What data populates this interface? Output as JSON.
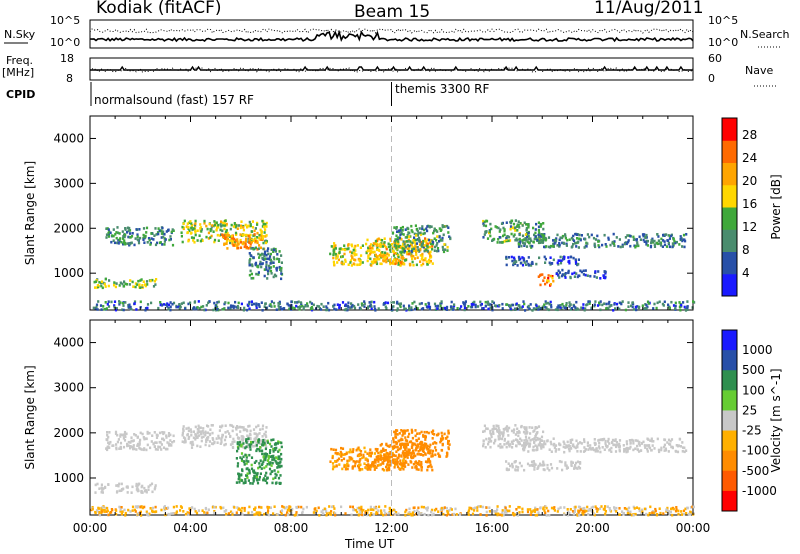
{
  "header": {
    "station": "Kodiak (fitACF)",
    "beam": "Beam 15",
    "date": "11/Aug/2011"
  },
  "side_labels": {
    "nsky": "N.Sky",
    "nsearch": "N.Search",
    "freq": "Freq.",
    "freq_unit": "[MHz]",
    "nave": "Nave",
    "cpid": "CPID"
  },
  "noise_axis": {
    "top": "10^5",
    "bottom": "10^0",
    "right_top": "10^5",
    "right_bottom": "10^0"
  },
  "freq_axis": {
    "top": "18",
    "bottom": "8",
    "right_top": "60",
    "right_bottom": "0"
  },
  "cpid_segments": [
    {
      "label": "normalsound (fast) 157 RF",
      "start_hour": 0
    },
    {
      "label": "themis 3300 RF",
      "start_hour": 12
    }
  ],
  "colors": {
    "power": [
      "#1a1aff",
      "#2850a8",
      "#4a8c6e",
      "#3fa83a",
      "#ffd700",
      "#ffa500",
      "#ff6a00",
      "#ff0000"
    ],
    "velocity": [
      "#ff0000",
      "#ff5a00",
      "#ff8c00",
      "#ffb000",
      "#c8c8c8",
      "#66cc33",
      "#2f8f4f",
      "#2850a8",
      "#1a1aff"
    ],
    "ground_scatter": "#c8c8c8"
  },
  "chart_data": [
    {
      "type": "heatmap",
      "title": "",
      "parameter": "Power",
      "xlabel": "",
      "ylabel": "Slant Range [km]",
      "xlim": [
        0,
        24
      ],
      "ylim": [
        180,
        4500
      ],
      "x_ticks": [
        "00:00",
        "04:00",
        "08:00",
        "12:00",
        "16:00",
        "20:00",
        "00:00"
      ],
      "y_ticks": [
        1000,
        2000,
        3000,
        4000
      ],
      "colorbar": {
        "label": "Power [dB]",
        "ticks": [
          4,
          8,
          12,
          16,
          20,
          24,
          28
        ],
        "range": [
          0,
          31
        ]
      },
      "scatter_regions": [
        {
          "t": [
            0.1,
            2.6
          ],
          "r": [
            700,
            900
          ],
          "level": 14
        },
        {
          "t": [
            0.6,
            3.3
          ],
          "r": [
            1650,
            2050
          ],
          "level": 10
        },
        {
          "t": [
            3.6,
            7.0
          ],
          "r": [
            1700,
            2200
          ],
          "level": 16
        },
        {
          "t": [
            5.2,
            6.9
          ],
          "r": [
            1550,
            1900
          ],
          "level": 22
        },
        {
          "t": [
            6.3,
            7.6
          ],
          "r": [
            900,
            1600
          ],
          "level": 9
        },
        {
          "t": [
            9.5,
            12.5
          ],
          "r": [
            1200,
            1700
          ],
          "level": 18
        },
        {
          "t": [
            11.0,
            13.6
          ],
          "r": [
            1200,
            1800
          ],
          "level": 20
        },
        {
          "t": [
            12.0,
            14.3
          ],
          "r": [
            1500,
            2100
          ],
          "level": 12
        },
        {
          "t": [
            15.6,
            18.0
          ],
          "r": [
            1700,
            2200
          ],
          "level": 12
        },
        {
          "t": [
            17.0,
            23.7
          ],
          "r": [
            1600,
            1900
          ],
          "level": 9
        },
        {
          "t": [
            16.5,
            19.5
          ],
          "r": [
            1200,
            1400
          ],
          "level": 7
        },
        {
          "t": [
            17.8,
            18.4
          ],
          "r": [
            750,
            1000
          ],
          "level": 24
        },
        {
          "t": [
            18.5,
            20.5
          ],
          "r": [
            900,
            1100
          ],
          "level": 6
        },
        {
          "t": [
            0.0,
            24.0
          ],
          "r": [
            200,
            400
          ],
          "level": 8
        }
      ]
    },
    {
      "type": "heatmap",
      "title": "",
      "parameter": "Velocity",
      "xlabel": "Time UT",
      "ylabel": "Slant Range [km]",
      "xlim": [
        0,
        24
      ],
      "ylim": [
        180,
        4500
      ],
      "x_ticks": [
        "00:00",
        "04:00",
        "08:00",
        "12:00",
        "16:00",
        "20:00",
        "00:00"
      ],
      "y_ticks": [
        1000,
        2000,
        3000,
        4000
      ],
      "colorbar": {
        "label": "Velocity [m s^-1]",
        "ticks": [
          "1000",
          "500",
          "100",
          "25",
          "-25",
          "-100",
          "-500",
          "-1000"
        ]
      },
      "scatter_regions": [
        {
          "t": [
            0.1,
            2.6
          ],
          "r": [
            700,
            900
          ],
          "level": 0,
          "gs": true
        },
        {
          "t": [
            0.6,
            3.3
          ],
          "r": [
            1650,
            2050
          ],
          "level": 0,
          "gs": true
        },
        {
          "t": [
            3.6,
            7.0
          ],
          "r": [
            1700,
            2200
          ],
          "level": 0,
          "gs": true
        },
        {
          "t": [
            5.8,
            7.6
          ],
          "r": [
            900,
            1900
          ],
          "level": 150
        },
        {
          "t": [
            9.5,
            12.5
          ],
          "r": [
            1200,
            1700
          ],
          "level": -120
        },
        {
          "t": [
            11.0,
            13.6
          ],
          "r": [
            1200,
            1800
          ],
          "level": -300
        },
        {
          "t": [
            12.0,
            14.3
          ],
          "r": [
            1500,
            2100
          ],
          "level": -200
        },
        {
          "t": [
            15.6,
            18.0
          ],
          "r": [
            1700,
            2200
          ],
          "level": 0,
          "gs": true
        },
        {
          "t": [
            17.0,
            23.7
          ],
          "r": [
            1600,
            1900
          ],
          "level": 0,
          "gs": true
        },
        {
          "t": [
            16.5,
            19.5
          ],
          "r": [
            1200,
            1400
          ],
          "level": 0,
          "gs": true
        },
        {
          "t": [
            0.0,
            24.0
          ],
          "r": [
            200,
            400
          ],
          "level": -50
        }
      ]
    }
  ]
}
